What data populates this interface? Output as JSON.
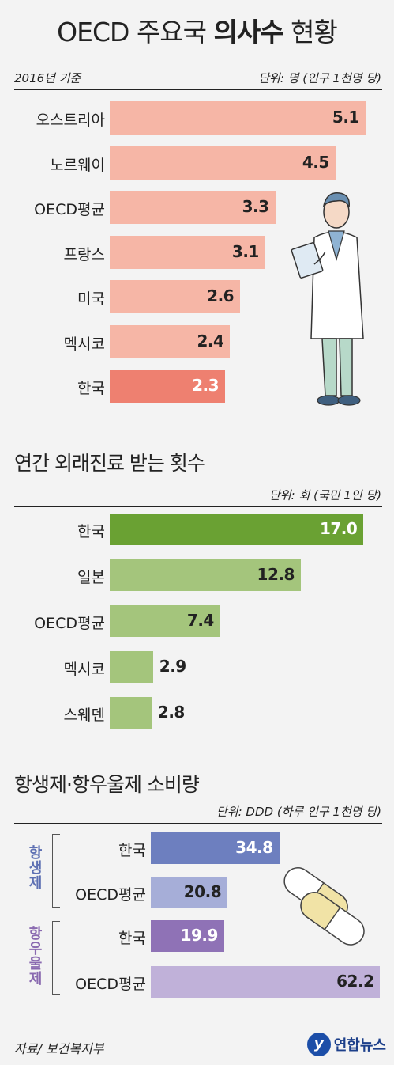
{
  "title_normal": "OECD 주요국 ",
  "title_bold": "의사수",
  "title_end": " 현황",
  "source": "자료/ 보건복지부",
  "logo_text": "연합뉴스",
  "logo_mark": "y",
  "chart_data": [
    {
      "type": "bar",
      "orientation": "horizontal",
      "title": "OECD 주요국 의사수 현황",
      "subtitle_left": "2016년 기준",
      "subtitle_right": "단위: 명 (인구 1천명 당)",
      "categories": [
        "오스트리아",
        "노르웨이",
        "OECD평균",
        "프랑스",
        "미국",
        "멕시코",
        "한국"
      ],
      "values": [
        5.1,
        4.5,
        3.3,
        3.1,
        2.6,
        2.4,
        2.3
      ],
      "value_labels": [
        "5.1",
        "4.5",
        "3.3",
        "3.1",
        "2.6",
        "2.4",
        "2.3"
      ],
      "colors": [
        "#f6b6a6",
        "#f6b6a6",
        "#f6b6a6",
        "#f6b6a6",
        "#f6b6a6",
        "#f6b6a6",
        "#ee8070"
      ],
      "highlight": "한국"
    },
    {
      "type": "bar",
      "orientation": "horizontal",
      "title": "연간 외래진료 받는 횟수",
      "subtitle_right": "단위: 회 (국민 1인 당)",
      "categories": [
        "한국",
        "일본",
        "OECD평균",
        "멕시코",
        "스웨덴"
      ],
      "values": [
        17.0,
        12.8,
        7.4,
        2.9,
        2.8
      ],
      "value_labels": [
        "17.0",
        "12.8",
        "7.4",
        "2.9",
        "2.8"
      ],
      "colors": [
        "#6aa133",
        "#a4c57c",
        "#a4c57c",
        "#a4c57c",
        "#a4c57c"
      ],
      "highlight": "한국"
    },
    {
      "type": "bar",
      "orientation": "horizontal",
      "title": "항생제·항우울제 소비량",
      "subtitle_right": "단위: DDD (하루 인구 1천명 당)",
      "groups": [
        {
          "name": "항생제",
          "categories": [
            "한국",
            "OECD평균"
          ],
          "values": [
            34.8,
            20.8
          ],
          "value_labels": [
            "34.8",
            "20.8"
          ],
          "colors": [
            "#6d7fbf",
            "#a6aed8"
          ]
        },
        {
          "name": "항우울제",
          "categories": [
            "한국",
            "OECD평균"
          ],
          "values": [
            19.9,
            62.2
          ],
          "value_labels": [
            "19.9",
            "62.2"
          ],
          "colors": [
            "#8f72b6",
            "#c0b1d9"
          ]
        }
      ]
    }
  ]
}
